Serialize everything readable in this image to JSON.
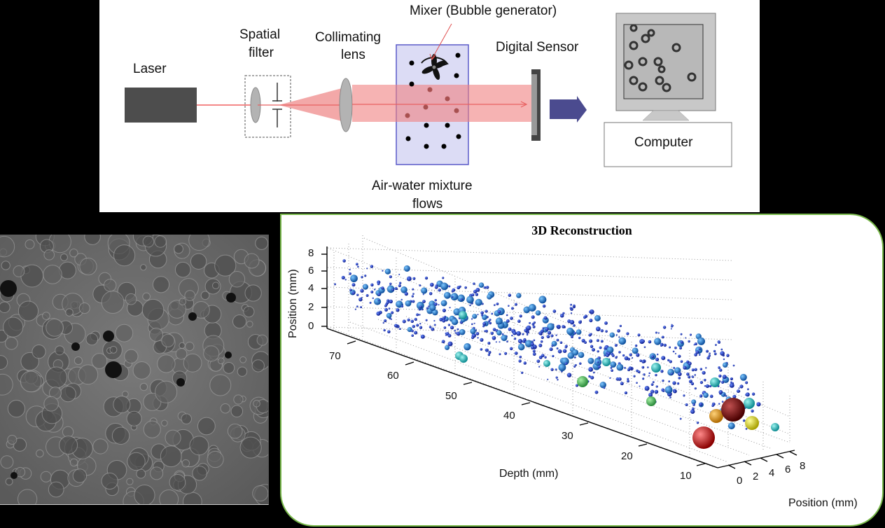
{
  "diagram": {
    "labels": {
      "laser": "Laser",
      "spatial_filter": "Spatial\nfilter",
      "spatial_filter_l1": "Spatial",
      "spatial_filter_l2": "filter",
      "collimating_l1": "Collimating",
      "collimating_l2": "lens",
      "mixer": "Mixer (Bubble generator)",
      "digital_sensor": "Digital Sensor",
      "computer": "Computer",
      "mixture_l1": "Air-water mixture",
      "mixture_l2": "flows"
    },
    "colors": {
      "laser_body": "#4d4d4d",
      "beam": "#f08080",
      "beam_fill": "#f2a3a3",
      "lens": "#b3b3b3",
      "tank_fill": "#dcdcf5",
      "tank_border": "#5a5ac8",
      "arrow": "#4b4b8f",
      "bubble": "#000000",
      "bubble_in_beam": "#b05050"
    }
  },
  "hologram": {
    "description": "Recorded hologram of air bubbles (grayscale)"
  },
  "reconstruction": {
    "title": "3D Reconstruction",
    "border_color": "#78b84a"
  },
  "chart_data": {
    "type": "scatter",
    "title": "3D Reconstruction",
    "xlabel": "Depth (mm)",
    "ylabel": "Position (mm)",
    "zlabel": "Position (mm)",
    "depth_ticks": [
      "70",
      "60",
      "50",
      "40",
      "30",
      "20",
      "10"
    ],
    "position_x_ticks": [
      "0",
      "2",
      "4",
      "6",
      "8"
    ],
    "position_z_ticks": [
      "0",
      "2",
      "4",
      "6",
      "8"
    ],
    "depth_range": [
      5,
      75
    ],
    "position_range": [
      0,
      8
    ],
    "grid": true,
    "legend": "none",
    "notes": "Bubbles rendered as spheres sized and colored by diameter: small dark blue (majority), medium blue, cyan, green, yellow/orange, large dark red",
    "highlight_bubbles": [
      {
        "color": "cyan",
        "screen": [
          661,
          450
        ],
        "r": 6
      },
      {
        "color": "cyan",
        "screen": [
          656,
          508
        ],
        "r": 6
      },
      {
        "color": "cyan",
        "screen": [
          662,
          512
        ],
        "r": 6
      },
      {
        "color": "cyan",
        "screen": [
          781,
          519
        ],
        "r": 5
      },
      {
        "color": "green",
        "screen": [
          832,
          545
        ],
        "r": 8
      },
      {
        "color": "green",
        "screen": [
          930,
          573
        ],
        "r": 7
      },
      {
        "color": "cyan",
        "screen": [
          866,
          517
        ],
        "r": 6
      },
      {
        "color": "cyan",
        "screen": [
          937,
          525
        ],
        "r": 7
      },
      {
        "color": "cyan",
        "screen": [
          1021,
          546
        ],
        "r": 7
      },
      {
        "color": "cyan",
        "screen": [
          1070,
          576
        ],
        "r": 8
      },
      {
        "color": "cyan",
        "screen": [
          1107,
          610
        ],
        "r": 6
      },
      {
        "color": "orange",
        "screen": [
          1023,
          594
        ],
        "r": 10
      },
      {
        "color": "darkred",
        "screen": [
          1047,
          585
        ],
        "r": 17
      },
      {
        "color": "yellow",
        "screen": [
          1074,
          604
        ],
        "r": 10
      },
      {
        "color": "red",
        "screen": [
          1005,
          625
        ],
        "r": 16
      }
    ]
  }
}
